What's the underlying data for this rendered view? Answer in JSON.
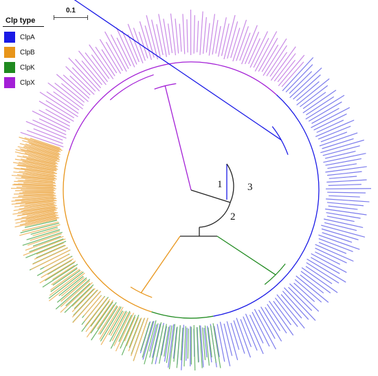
{
  "legend": {
    "title": "Clp type",
    "items": [
      {
        "label": "ClpA",
        "color": "#1a1ae6"
      },
      {
        "label": "ClpB",
        "color": "#e8951a"
      },
      {
        "label": "ClpK",
        "color": "#1f8a1f"
      },
      {
        "label": "ClpX",
        "color": "#a31fd6"
      }
    ]
  },
  "scale_bar": {
    "label": "0.1"
  },
  "clade_labels": [
    "1",
    "2",
    "3"
  ],
  "leaf_colors": {
    "ClpA": "#7b7bec",
    "ClpB": "#f0b868",
    "ClpK": "#6ab66a",
    "ClpX": "#c98ae6"
  },
  "tree": {
    "sectors": [
      {
        "type": "ClpX",
        "from_deg": 198,
        "to_deg": 312,
        "leaves": 70
      },
      {
        "type": "ClpA",
        "from_deg": 312,
        "to_deg": 470,
        "leaves": 96
      },
      {
        "type": "ClpK",
        "from_deg": 470,
        "to_deg": 528,
        "leaves": 36
      },
      {
        "type": "ClpB",
        "from_deg": 528,
        "to_deg": 560,
        "leaves": 20
      },
      {
        "type": "ClpB",
        "from_deg": 560,
        "to_deg": 558,
        "leaves": 0
      }
    ]
  }
}
